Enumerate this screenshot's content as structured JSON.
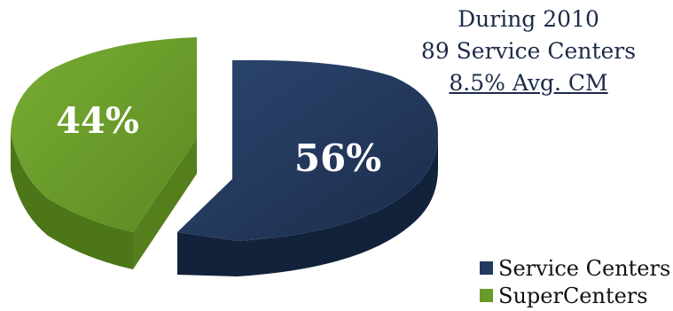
{
  "title": {
    "line1": "During 2010",
    "line2": "89 Service Centers",
    "line3": "8.5%  Avg. CM"
  },
  "chart_data": {
    "type": "pie",
    "style": "3d-exploded",
    "categories": [
      "Service Centers",
      "SuperCenters"
    ],
    "values": [
      56,
      44
    ],
    "value_labels": [
      "56%",
      "44%"
    ],
    "colors": [
      "#243a5e",
      "#6a9a2a"
    ],
    "legend_position": "bottom-right"
  }
}
